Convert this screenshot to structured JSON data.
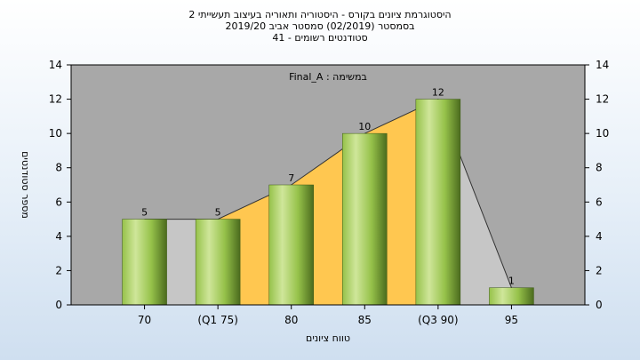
{
  "chart_data": {
    "type": "bar",
    "title_lines": [
      "היסטוגרמת ציונים בקורס - היסטוריה ותאוריה בעיצוב תעשייתי 2",
      "בסמסטר  (02/2019)  סמסטר אביב 2019/20",
      "סטודנטים רשומים - 41"
    ],
    "subtitle": "במשימה : Final_A",
    "xlabel": "טווח ציונים",
    "ylabel": "מספר סטודנטים",
    "categories": [
      "70",
      "(Q1 75)",
      "80",
      "85",
      "(Q3 90)",
      "95"
    ],
    "values": [
      5,
      5,
      7,
      10,
      12,
      1
    ],
    "data_labels": [
      "5",
      "5",
      "7",
      "10",
      "12",
      "1"
    ],
    "ylim": [
      0,
      14
    ],
    "yticks": [
      "0",
      "2",
      "4",
      "6",
      "8",
      "10",
      "12",
      "14"
    ],
    "grid": false,
    "colors": {
      "plot_background": "#a8a8a8",
      "background_area": "#c6c6c6",
      "quartile_band": "#ffc750",
      "bar_light": "#cfe69a",
      "bar_mid": "#96c24a",
      "bar_dark": "#4b6b1e",
      "trend_line": "#333333"
    }
  }
}
